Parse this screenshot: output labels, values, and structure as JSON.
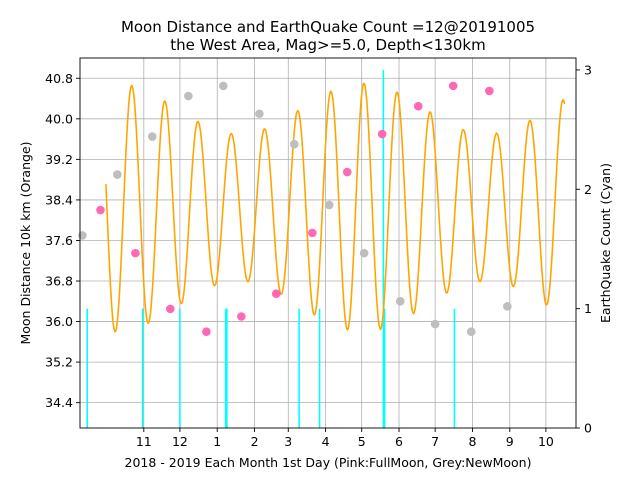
{
  "chart_data": {
    "type": "line",
    "title": "Moon Distance and EarthQuake Count  =12@20191005",
    "subtitle": "the West Area, Mag>=5.0, Depth<130km",
    "xlabel": "2018 - 2019 Each Month 1st Day (Pink:FullMoon, Grey:NewMoon)",
    "ylabel_left": "Moon Distance 10k km (Orange)",
    "ylabel_right": "EarthQuake Count (Cyan)",
    "x_tick_labels": [
      "11",
      "12",
      "1",
      "2",
      "3",
      "4",
      "5",
      "6",
      "7",
      "8",
      "9",
      "10"
    ],
    "x_ticks_day": [
      31,
      61,
      92,
      123,
      151,
      182,
      212,
      243,
      273,
      304,
      335,
      365
    ],
    "xlim_day": [
      -22,
      390
    ],
    "ylim_left": [
      33.9,
      41.2
    ],
    "y_left_ticks": [
      34.4,
      35.2,
      36.0,
      36.8,
      37.6,
      38.4,
      39.2,
      40.0,
      40.8
    ],
    "ylim_right": [
      0,
      3.1
    ],
    "y_right_ticks": [
      0,
      1,
      2,
      3
    ],
    "grid": true,
    "colors": {
      "distance": "#ffa500",
      "quake": "#00ffff",
      "full_moon": "#ff69b4",
      "new_moon": "#bebebe",
      "grid": "#b0b0b0"
    },
    "distance_model": {
      "mean": 38.25,
      "amp_primary": 1.95,
      "period_anomalistic": 27.55,
      "perigee_day": 21,
      "amp_beat": 0.5,
      "period_beat": 206,
      "beat_phase_day": 7,
      "day_start": -0.5,
      "day_end": 380.5
    },
    "full_moons": [
      {
        "day": -5,
        "value": 38.2
      },
      {
        "day": 24,
        "value": 37.35
      },
      {
        "day": 53,
        "value": 36.25
      },
      {
        "day": 83,
        "value": 35.8
      },
      {
        "day": 112,
        "value": 36.1
      },
      {
        "day": 141,
        "value": 36.55
      },
      {
        "day": 171,
        "value": 37.75
      },
      {
        "day": 200,
        "value": 38.95
      },
      {
        "day": 229,
        "value": 39.7
      },
      {
        "day": 259,
        "value": 40.25
      },
      {
        "day": 288,
        "value": 40.65
      },
      {
        "day": 318,
        "value": 40.55
      }
    ],
    "new_moons": [
      {
        "day": -20,
        "value": 37.7
      },
      {
        "day": 9,
        "value": 38.9
      },
      {
        "day": 38,
        "value": 39.65
      },
      {
        "day": 68,
        "value": 40.45
      },
      {
        "day": 97,
        "value": 40.65
      },
      {
        "day": 127,
        "value": 40.1
      },
      {
        "day": 156,
        "value": 39.5
      },
      {
        "day": 185,
        "value": 38.3
      },
      {
        "day": 214,
        "value": 37.35
      },
      {
        "day": 244,
        "value": 36.4
      },
      {
        "day": 273,
        "value": 35.95
      },
      {
        "day": 303,
        "value": 35.8
      },
      {
        "day": 333,
        "value": 36.3
      }
    ],
    "earthquakes": [
      {
        "day": -16,
        "count": 1
      },
      {
        "day": 30,
        "count": 1
      },
      {
        "day": 61,
        "count": 1
      },
      {
        "day": 99,
        "count": 1
      },
      {
        "day": 100,
        "count": 1
      },
      {
        "day": 160,
        "count": 1
      },
      {
        "day": 177,
        "count": 1
      },
      {
        "day": 230,
        "count": 3
      },
      {
        "day": 231,
        "count": 1
      },
      {
        "day": 289,
        "count": 1
      }
    ]
  }
}
